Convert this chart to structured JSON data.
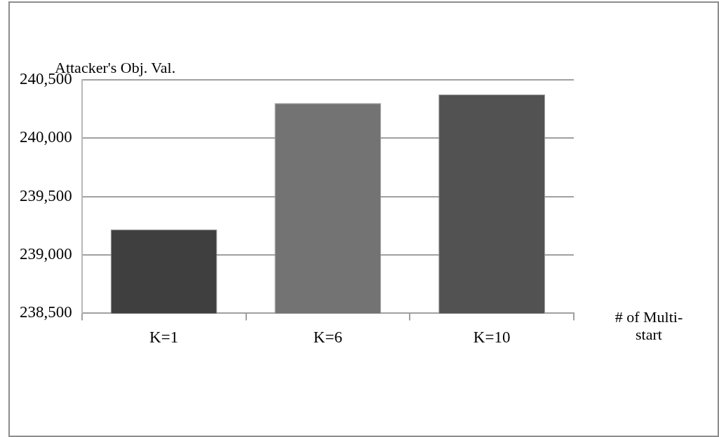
{
  "chart_data": {
    "type": "bar",
    "ylabel": "Attacker's Obj. Val.",
    "xlabel": "# of Multi-start",
    "categories": [
      "K=1",
      "K=6",
      "K=10"
    ],
    "values": [
      239220,
      240300,
      240375
    ],
    "colors": [
      "#3f3f3f",
      "#737373",
      "#525252"
    ],
    "ylim": [
      238500,
      240500
    ],
    "yticks": [
      {
        "value": 238500,
        "label": "238,500"
      },
      {
        "value": 239000,
        "label": "239,000"
      },
      {
        "value": 239500,
        "label": "239,500"
      },
      {
        "value": 240000,
        "label": "240,000"
      },
      {
        "value": 240500,
        "label": "240,500"
      }
    ],
    "grid": "y",
    "legend": false
  }
}
